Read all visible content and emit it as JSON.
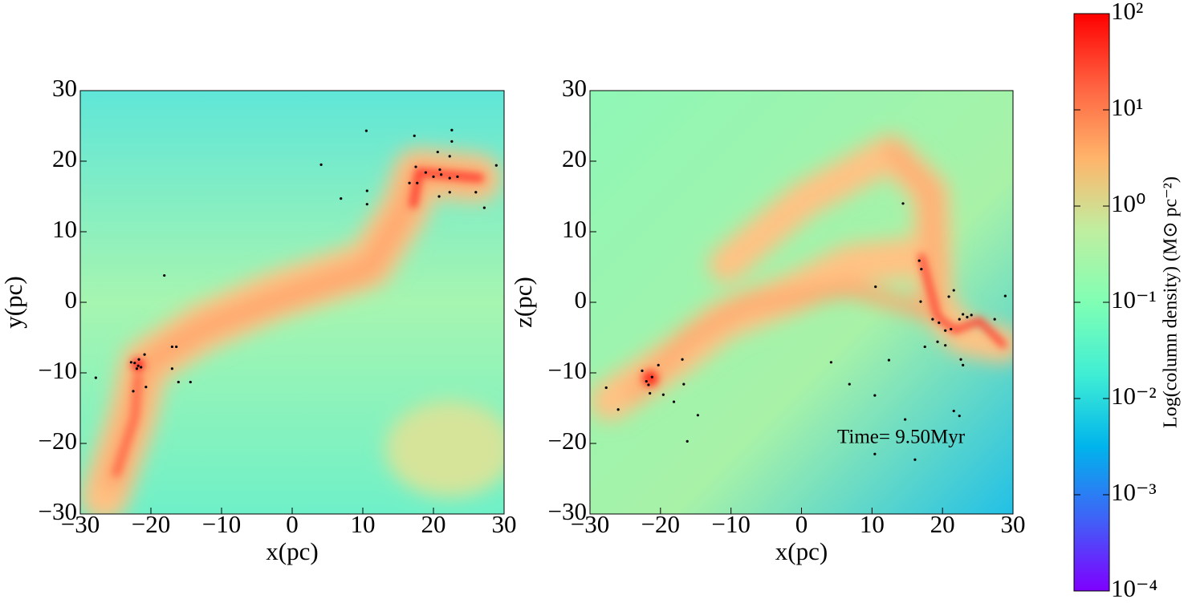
{
  "chart_data": [
    {
      "type": "scatter",
      "xlabel": "x(pc)",
      "ylabel": "y(pc)",
      "xlim": [
        -30,
        30
      ],
      "ylim": [
        -30,
        30
      ],
      "xticks": [
        {
          "value": -30,
          "label": "−30"
        },
        {
          "value": -20,
          "label": "−20"
        },
        {
          "value": -10,
          "label": "−10"
        },
        0,
        10,
        20,
        30
      ],
      "yticks": [
        {
          "value": -30,
          "label": "−30"
        },
        {
          "value": -20,
          "label": "−20"
        },
        {
          "value": -10,
          "label": "−10"
        },
        0,
        10,
        20,
        30
      ],
      "series": [
        {
          "color": "#000000",
          "x": [
            4.1,
            10.5,
            10.6,
            10.6,
            6.9,
            17.3,
            20.6,
            22.6,
            22.6,
            22.3,
            17.5,
            18.9,
            20.0,
            21.1,
            22.3,
            23.4,
            20.9,
            16.6,
            17.7,
            20.8,
            22.3,
            26.0,
            27.2,
            28.9,
            -18.1,
            -16.4,
            -17.0,
            -17.0,
            -16.1,
            -14.4,
            -27.8,
            -22.8,
            -22.3,
            -21.8,
            -21.4,
            -20.9,
            -22.0,
            -20.7,
            -22.5,
            -21.7
          ],
          "values": [
            19.5,
            24.3,
            15.8,
            13.9,
            14.7,
            23.6,
            21.3,
            24.4,
            22.8,
            20.7,
            19.2,
            18.4,
            17.8,
            18.1,
            17.6,
            17.8,
            18.8,
            16.9,
            16.9,
            15.0,
            15.6,
            15.6,
            13.4,
            19.4,
            3.8,
            -6.3,
            -6.3,
            -9.4,
            -11.3,
            -11.3,
            -10.7,
            -8.5,
            -8.6,
            -9.0,
            -9.2,
            -7.4,
            -9.4,
            -12.0,
            -12.6,
            -8.1
          ]
        }
      ]
    },
    {
      "type": "scatter",
      "xlabel": "x(pc)",
      "ylabel": "z(pc)",
      "annotation": "Time= 9.50Myr",
      "xlim": [
        -30,
        30
      ],
      "ylim": [
        -30,
        30
      ],
      "xticks": [
        {
          "value": -30,
          "label": "−30"
        },
        {
          "value": -20,
          "label": "−20"
        },
        {
          "value": -10,
          "label": "−10"
        },
        0,
        10,
        20,
        30
      ],
      "yticks": [
        {
          "value": -30,
          "label": "−30"
        },
        {
          "value": -20,
          "label": "−20"
        },
        {
          "value": -10,
          "label": "−10"
        },
        0,
        10,
        20,
        30
      ],
      "series": [
        {
          "color": "#000000",
          "x": [
            28.9,
            27.4,
            14.4,
            10.5,
            16.7,
            17.0,
            16.9,
            20.9,
            21.6,
            22.9,
            22.4,
            21.2,
            20.4,
            19.5,
            18.6,
            23.5,
            24.1,
            19.3,
            17.5,
            20.4,
            22.6,
            22.9,
            21.6,
            22.4,
            14.7,
            16.1,
            10.4,
            10.4,
            6.8,
            4.2,
            12.4,
            -27.7,
            -26.0,
            -22.6,
            -22.0,
            -21.7,
            -21.2,
            -21.5,
            -20.3,
            -16.9,
            -16.7,
            -18.1,
            -14.7,
            -16.2,
            -19.6
          ],
          "values": [
            0.9,
            -2.4,
            14.0,
            2.2,
            5.9,
            4.7,
            0.1,
            0.8,
            1.7,
            -1.7,
            -2.4,
            -3.8,
            -4.0,
            -2.9,
            -2.4,
            -2.1,
            -1.8,
            -5.6,
            -6.3,
            -6.1,
            -8.1,
            -8.9,
            -15.4,
            -16.1,
            -16.6,
            -22.3,
            -21.5,
            -13.2,
            -11.6,
            -8.5,
            -8.2,
            -12.1,
            -15.2,
            -9.7,
            -11.2,
            -11.7,
            -10.6,
            -12.9,
            -8.9,
            -8.1,
            -11.6,
            -14.1,
            -16.0,
            -19.7,
            -13.1
          ]
        }
      ]
    },
    {
      "type": "colorbar",
      "label": "Log(column density) (M⊙ pc⁻²)",
      "log": true,
      "ylim": [
        0.0001,
        100
      ],
      "yticks": [
        {
          "value": 0.0001,
          "label": "10⁻⁴"
        },
        {
          "value": 0.001,
          "label": "10⁻³"
        },
        {
          "value": 0.01,
          "label": "10⁻²"
        },
        {
          "value": 0.1,
          "label": "10⁻¹"
        },
        {
          "value": 1,
          "label": "10⁰"
        },
        {
          "value": 10,
          "label": "10¹"
        },
        {
          "value": 100,
          "label": "10²"
        }
      ],
      "colors": [
        "#7f00ff",
        "#3f62f7",
        "#00b4ec",
        "#40eed4",
        "#80ffb4",
        "#c0eea0",
        "#ffb46a",
        "#ff6240",
        "#ff0000"
      ]
    }
  ]
}
